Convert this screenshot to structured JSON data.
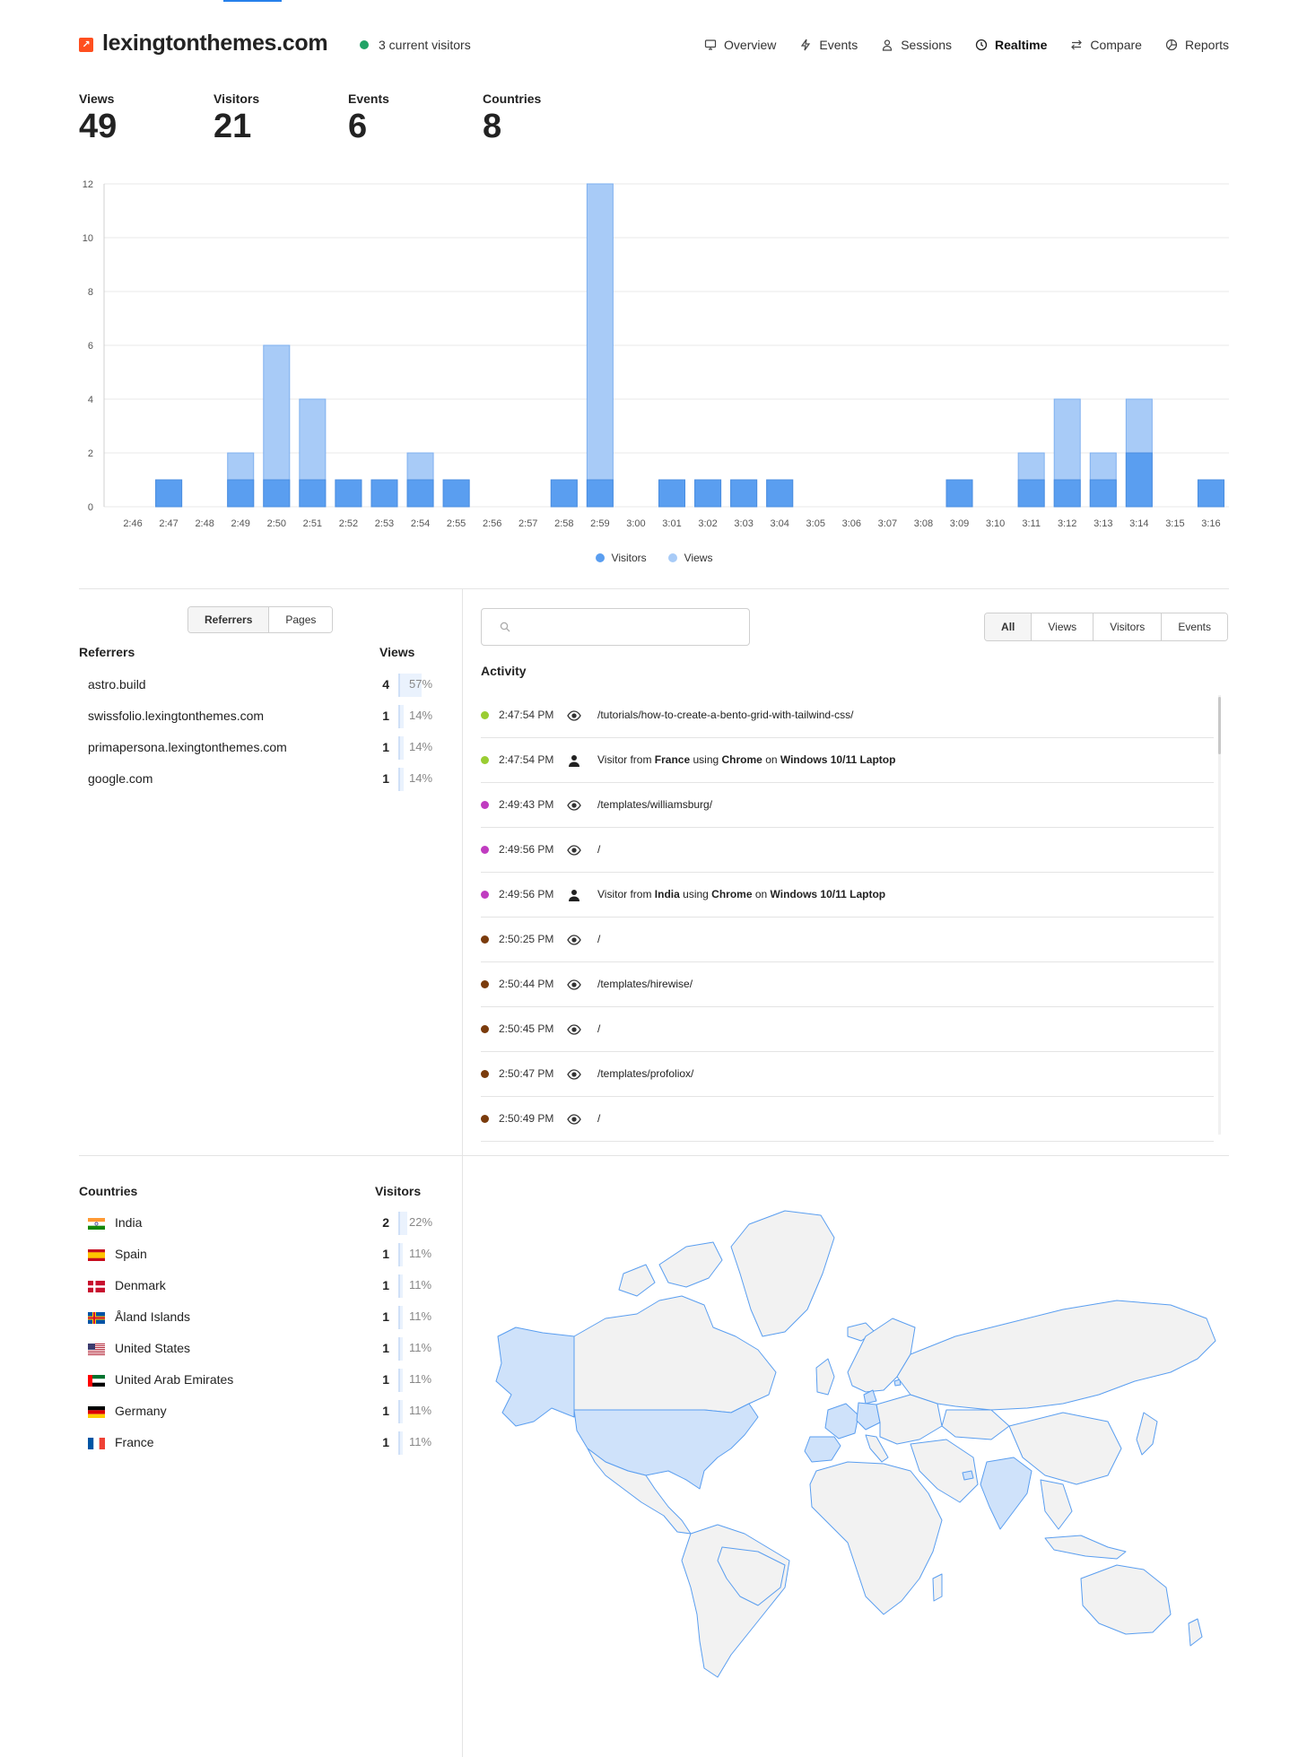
{
  "header": {
    "logo_glyph": "↗",
    "site_name": "lexingtonthemes.com",
    "live_text": "3 current visitors",
    "nav": [
      {
        "label": "Overview",
        "icon": "monitor-icon",
        "active": false
      },
      {
        "label": "Events",
        "icon": "bolt-icon",
        "active": false
      },
      {
        "label": "Sessions",
        "icon": "user-icon",
        "active": false
      },
      {
        "label": "Realtime",
        "icon": "clock-icon",
        "active": true
      },
      {
        "label": "Compare",
        "icon": "swap-icon",
        "active": false
      },
      {
        "label": "Reports",
        "icon": "pie-icon",
        "active": false
      }
    ]
  },
  "metrics": [
    {
      "label": "Views",
      "value": "49"
    },
    {
      "label": "Visitors",
      "value": "21"
    },
    {
      "label": "Events",
      "value": "6"
    },
    {
      "label": "Countries",
      "value": "8"
    }
  ],
  "chart_data": {
    "type": "bar",
    "categories": [
      "2:46",
      "2:47",
      "2:48",
      "2:49",
      "2:50",
      "2:51",
      "2:52",
      "2:53",
      "2:54",
      "2:55",
      "2:56",
      "2:57",
      "2:58",
      "2:59",
      "3:00",
      "3:01",
      "3:02",
      "3:03",
      "3:04",
      "3:05",
      "3:06",
      "3:07",
      "3:08",
      "3:09",
      "3:10",
      "3:11",
      "3:12",
      "3:13",
      "3:14",
      "3:15",
      "3:16"
    ],
    "series": [
      {
        "name": "Visitors",
        "values": [
          0,
          1,
          0,
          1,
          1,
          1,
          1,
          1,
          1,
          1,
          0,
          0,
          1,
          1,
          0,
          1,
          1,
          1,
          1,
          0,
          0,
          0,
          0,
          1,
          0,
          1,
          1,
          1,
          2,
          0,
          1
        ],
        "color": "#5a9ef0"
      },
      {
        "name": "Views",
        "values": [
          0,
          1,
          0,
          2,
          6,
          4,
          1,
          1,
          2,
          1,
          0,
          0,
          1,
          12,
          0,
          1,
          1,
          1,
          1,
          0,
          0,
          0,
          0,
          1,
          0,
          2,
          4,
          2,
          4,
          0,
          1
        ],
        "color": "#a8cbf7"
      }
    ],
    "yticks": [
      0,
      2,
      4,
      6,
      8,
      10,
      12
    ],
    "ylim": [
      0,
      12
    ],
    "stacked": false,
    "grid": true,
    "legend_position": "bottom"
  },
  "referrers": {
    "tabs": [
      "Referrers",
      "Pages"
    ],
    "active_tab": "Referrers",
    "col_name": "Referrers",
    "col_value": "Views",
    "rows": [
      {
        "name": "astro.build",
        "count": "4",
        "pct": "57%",
        "share": 0.57
      },
      {
        "name": "swissfolio.lexingtonthemes.com",
        "count": "1",
        "pct": "14%",
        "share": 0.14
      },
      {
        "name": "primapersona.lexingtonthemes.com",
        "count": "1",
        "pct": "14%",
        "share": 0.14
      },
      {
        "name": "google.com",
        "count": "1",
        "pct": "14%",
        "share": 0.14
      }
    ]
  },
  "activity": {
    "search_placeholder": "",
    "filters": [
      "All",
      "Views",
      "Visitors",
      "Events"
    ],
    "active_filter": "All",
    "title": "Activity",
    "rows": [
      {
        "time": "2:47:54 PM",
        "kind": "view",
        "color": "#9acd32",
        "text": "/tutorials/how-to-create-a-bento-grid-with-tailwind-css/"
      },
      {
        "time": "2:47:54 PM",
        "kind": "visitor",
        "color": "#9acd32",
        "pre": "Visitor from ",
        "country": "France",
        "mid": " using ",
        "browser": "Chrome",
        "on": " on ",
        "device": "Windows 10/11 Laptop"
      },
      {
        "time": "2:49:43 PM",
        "kind": "view",
        "color": "#c03cc0",
        "text": "/templates/williamsburg/"
      },
      {
        "time": "2:49:56 PM",
        "kind": "view",
        "color": "#c03cc0",
        "text": "/"
      },
      {
        "time": "2:49:56 PM",
        "kind": "visitor",
        "color": "#c03cc0",
        "pre": "Visitor from ",
        "country": "India",
        "mid": " using ",
        "browser": "Chrome",
        "on": " on ",
        "device": "Windows 10/11 Laptop"
      },
      {
        "time": "2:50:25 PM",
        "kind": "view",
        "color": "#7a3b0c",
        "text": "/"
      },
      {
        "time": "2:50:44 PM",
        "kind": "view",
        "color": "#7a3b0c",
        "text": "/templates/hirewise/"
      },
      {
        "time": "2:50:45 PM",
        "kind": "view",
        "color": "#7a3b0c",
        "text": "/"
      },
      {
        "time": "2:50:47 PM",
        "kind": "view",
        "color": "#7a3b0c",
        "text": "/templates/profoliox/"
      },
      {
        "time": "2:50:49 PM",
        "kind": "view",
        "color": "#7a3b0c",
        "text": "/"
      }
    ]
  },
  "countries": {
    "col_name": "Countries",
    "col_value": "Visitors",
    "rows": [
      {
        "name": "India",
        "flag": "india-flag-icon",
        "count": "2",
        "pct": "22%",
        "share": 0.22
      },
      {
        "name": "Spain",
        "flag": "spain-flag-icon",
        "count": "1",
        "pct": "11%",
        "share": 0.11
      },
      {
        "name": "Denmark",
        "flag": "denmark-flag-icon",
        "count": "1",
        "pct": "11%",
        "share": 0.11
      },
      {
        "name": "Åland Islands",
        "flag": "aland-flag-icon",
        "count": "1",
        "pct": "11%",
        "share": 0.11
      },
      {
        "name": "United States",
        "flag": "us-flag-icon",
        "count": "1",
        "pct": "11%",
        "share": 0.11
      },
      {
        "name": "United Arab Emirates",
        "flag": "uae-flag-icon",
        "count": "1",
        "pct": "11%",
        "share": 0.11
      },
      {
        "name": "Germany",
        "flag": "germany-flag-icon",
        "count": "1",
        "pct": "11%",
        "share": 0.11
      },
      {
        "name": "France",
        "flag": "france-flag-icon",
        "count": "1",
        "pct": "11%",
        "share": 0.11
      }
    ]
  },
  "colors": {
    "accent": "#2680eb",
    "visitors": "#5a9ef0",
    "views": "#a8cbf7",
    "map_land": "#f2f2f2",
    "map_border": "#5a9ef0",
    "map_highlight": "#cfe2fa"
  }
}
